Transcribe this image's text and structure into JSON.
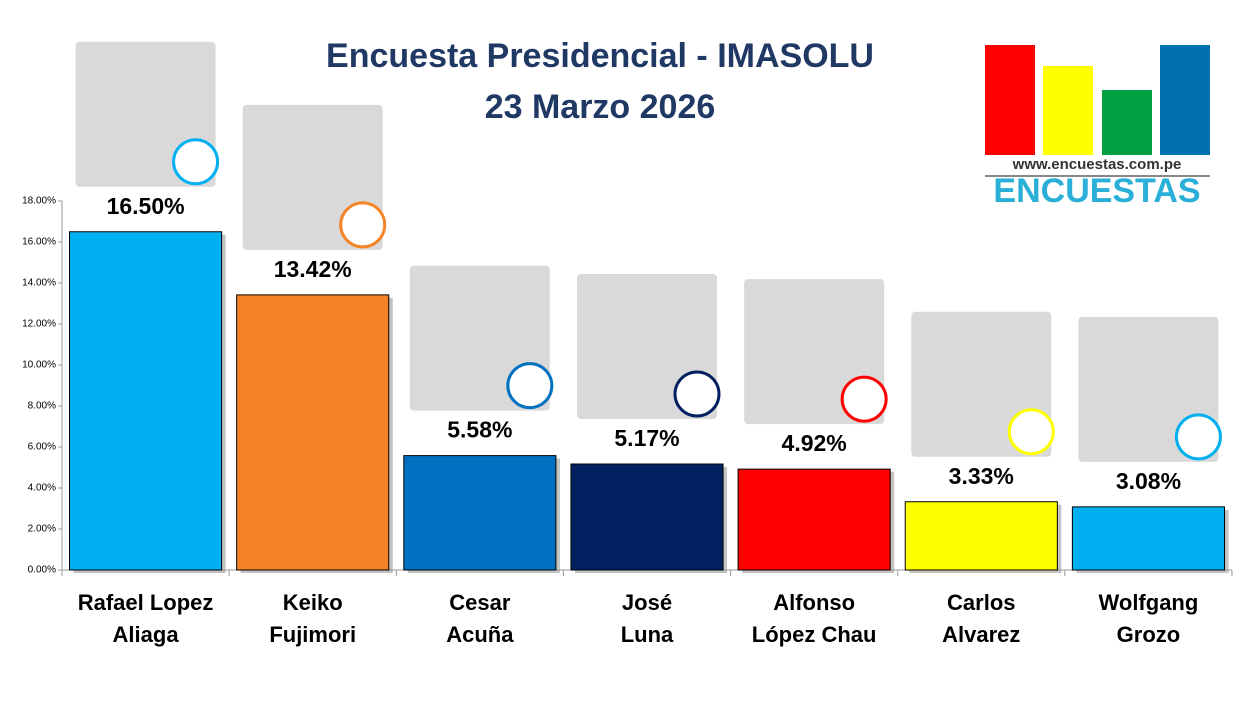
{
  "chart_data": {
    "type": "bar",
    "title": [
      "Encuesta Presidencial - IMASOLU",
      "23 Marzo 2026"
    ],
    "categories": [
      [
        "Rafael Lopez",
        "Aliaga"
      ],
      [
        "Keiko",
        "Fujimori"
      ],
      [
        "Cesar",
        "Acuña"
      ],
      [
        "José",
        "Luna"
      ],
      [
        "Alfonso",
        "López Chau"
      ],
      [
        "Carlos",
        "Alvarez"
      ],
      [
        "Wolfgang",
        "Grozo"
      ]
    ],
    "values": [
      16.5,
      13.42,
      5.58,
      5.17,
      4.92,
      3.33,
      3.08
    ],
    "value_labels": [
      "16.50%",
      "13.42%",
      "5.58%",
      "5.17%",
      "4.92%",
      "3.33%",
      "3.08%"
    ],
    "colors": [
      "#00b0f0",
      "#f58426",
      "#0070c0",
      "#002060",
      "#ff0000",
      "#ffff00",
      "#00b0f0"
    ],
    "ylim": [
      0,
      18
    ],
    "yticks": [
      {
        "value": 0,
        "label": "0.00%"
      },
      {
        "value": 2,
        "label": "2.00%"
      },
      {
        "value": 4,
        "label": "4.00%"
      },
      {
        "value": 6,
        "label": "6.00%"
      },
      {
        "value": 8,
        "label": "8.00%"
      },
      {
        "value": 10,
        "label": "10.00%"
      },
      {
        "value": 12,
        "label": "12.00%"
      },
      {
        "value": 14,
        "label": "14.00%"
      },
      {
        "value": 16,
        "label": "16.00%"
      },
      {
        "value": 18,
        "label": "18.00%"
      }
    ],
    "grid": false,
    "logo": {
      "url": "www.encuestas.com.pe",
      "name": "ENCUESTAS"
    }
  }
}
